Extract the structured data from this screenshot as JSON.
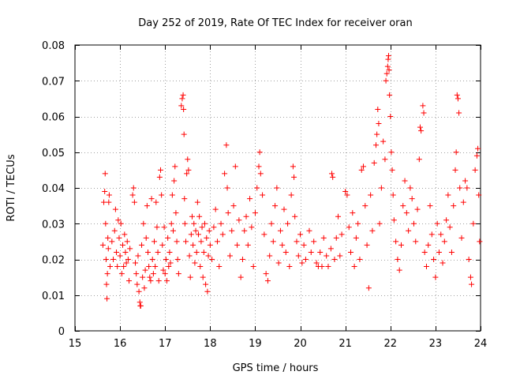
{
  "chart_data": {
    "type": "scatter",
    "title": "Day 252 of 2019, Rate Of TEC Index for receiver oran",
    "xlabel": "GPS time / hours",
    "ylabel": "ROTI / TECUs",
    "xlim": [
      15,
      24
    ],
    "ylim": [
      0,
      0.08
    ],
    "xticks": [
      15,
      16,
      17,
      18,
      19,
      20,
      21,
      22,
      23,
      24
    ],
    "xtick_labels": [
      "15",
      "16",
      "17",
      "18",
      "19",
      "20",
      "21",
      "22",
      "23",
      "24"
    ],
    "yticks": [
      0,
      0.01,
      0.02,
      0.03,
      0.04,
      0.05,
      0.06,
      0.07,
      0.08
    ],
    "ytick_labels": [
      "0",
      "0.01",
      "0.02",
      "0.03",
      "0.04",
      "0.05",
      "0.06",
      "0.07",
      "0.08"
    ],
    "grid": true,
    "marker": "+",
    "color": "#ff0000",
    "series": [
      {
        "name": "ROTI",
        "points": [
          [
            15.62,
            0.024
          ],
          [
            15.64,
            0.036
          ],
          [
            15.66,
            0.039
          ],
          [
            15.67,
            0.044
          ],
          [
            15.68,
            0.03
          ],
          [
            15.69,
            0.02
          ],
          [
            15.7,
            0.013
          ],
          [
            15.71,
            0.009
          ],
          [
            15.72,
            0.016
          ],
          [
            15.73,
            0.026
          ],
          [
            15.74,
            0.023
          ],
          [
            15.75,
            0.036
          ],
          [
            15.76,
            0.038
          ],
          [
            15.78,
            0.018
          ],
          [
            15.82,
            0.025
          ],
          [
            15.85,
            0.02
          ],
          [
            15.88,
            0.028
          ],
          [
            15.9,
            0.034
          ],
          [
            15.92,
            0.022
          ],
          [
            15.94,
            0.018
          ],
          [
            15.96,
            0.031
          ],
          [
            15.98,
            0.026
          ],
          [
            16.0,
            0.021
          ],
          [
            16.02,
            0.03
          ],
          [
            16.04,
            0.016
          ],
          [
            16.06,
            0.024
          ],
          [
            16.08,
            0.018
          ],
          [
            16.1,
            0.027
          ],
          [
            16.12,
            0.022
          ],
          [
            16.14,
            0.019
          ],
          [
            16.16,
            0.025
          ],
          [
            16.18,
            0.02
          ],
          [
            16.2,
            0.014
          ],
          [
            16.22,
            0.023
          ],
          [
            16.28,
            0.038
          ],
          [
            16.3,
            0.04
          ],
          [
            16.32,
            0.036
          ],
          [
            16.34,
            0.019
          ],
          [
            16.36,
            0.016
          ],
          [
            16.38,
            0.013
          ],
          [
            16.4,
            0.021
          ],
          [
            16.42,
            0.011
          ],
          [
            16.44,
            0.008
          ],
          [
            16.45,
            0.007
          ],
          [
            16.46,
            0.007
          ],
          [
            16.48,
            0.024
          ],
          [
            16.5,
            0.015
          ],
          [
            16.52,
            0.03
          ],
          [
            16.54,
            0.012
          ],
          [
            16.56,
            0.017
          ],
          [
            16.58,
            0.026
          ],
          [
            16.6,
            0.035
          ],
          [
            16.62,
            0.022
          ],
          [
            16.64,
            0.018
          ],
          [
            16.66,
            0.015
          ],
          [
            16.68,
            0.014
          ],
          [
            16.7,
            0.037
          ],
          [
            16.72,
            0.02
          ],
          [
            16.74,
            0.016
          ],
          [
            16.76,
            0.025
          ],
          [
            16.78,
            0.018
          ],
          [
            16.8,
            0.036
          ],
          [
            16.82,
            0.029
          ],
          [
            16.84,
            0.022
          ],
          [
            16.86,
            0.014
          ],
          [
            16.88,
            0.043
          ],
          [
            16.9,
            0.045
          ],
          [
            16.92,
            0.038
          ],
          [
            16.94,
            0.024
          ],
          [
            16.96,
            0.017
          ],
          [
            16.98,
            0.029
          ],
          [
            17.0,
            0.016
          ],
          [
            17.02,
            0.02
          ],
          [
            17.04,
            0.014
          ],
          [
            17.06,
            0.026
          ],
          [
            17.08,
            0.018
          ],
          [
            17.1,
            0.022
          ],
          [
            17.12,
            0.019
          ],
          [
            17.14,
            0.03
          ],
          [
            17.16,
            0.038
          ],
          [
            17.18,
            0.028
          ],
          [
            17.2,
            0.042
          ],
          [
            17.22,
            0.046
          ],
          [
            17.24,
            0.033
          ],
          [
            17.26,
            0.025
          ],
          [
            17.28,
            0.02
          ],
          [
            17.3,
            0.016
          ],
          [
            17.36,
            0.063
          ],
          [
            17.38,
            0.065
          ],
          [
            17.4,
            0.066
          ],
          [
            17.41,
            0.062
          ],
          [
            17.42,
            0.055
          ],
          [
            17.43,
            0.037
          ],
          [
            17.44,
            0.03
          ],
          [
            17.46,
            0.025
          ],
          [
            17.48,
            0.044
          ],
          [
            17.5,
            0.048
          ],
          [
            17.52,
            0.045
          ],
          [
            17.54,
            0.021
          ],
          [
            17.56,
            0.015
          ],
          [
            17.58,
            0.027
          ],
          [
            17.6,
            0.032
          ],
          [
            17.62,
            0.024
          ],
          [
            17.64,
            0.03
          ],
          [
            17.66,
            0.019
          ],
          [
            17.68,
            0.028
          ],
          [
            17.7,
            0.022
          ],
          [
            17.72,
            0.036
          ],
          [
            17.74,
            0.027
          ],
          [
            17.76,
            0.032
          ],
          [
            17.78,
            0.018
          ],
          [
            17.8,
            0.025
          ],
          [
            17.82,
            0.029
          ],
          [
            17.84,
            0.015
          ],
          [
            17.86,
            0.022
          ],
          [
            17.88,
            0.03
          ],
          [
            17.9,
            0.013
          ],
          [
            17.92,
            0.026
          ],
          [
            17.94,
            0.011
          ],
          [
            17.96,
            0.021
          ],
          [
            17.98,
            0.028
          ],
          [
            18.0,
            0.024
          ],
          [
            18.04,
            0.02
          ],
          [
            18.08,
            0.029
          ],
          [
            18.12,
            0.034
          ],
          [
            18.16,
            0.025
          ],
          [
            18.2,
            0.018
          ],
          [
            18.24,
            0.03
          ],
          [
            18.28,
            0.027
          ],
          [
            18.32,
            0.044
          ],
          [
            18.36,
            0.052
          ],
          [
            18.38,
            0.04
          ],
          [
            18.4,
            0.033
          ],
          [
            18.44,
            0.021
          ],
          [
            18.48,
            0.028
          ],
          [
            18.52,
            0.035
          ],
          [
            18.56,
            0.046
          ],
          [
            18.6,
            0.024
          ],
          [
            18.64,
            0.031
          ],
          [
            18.68,
            0.015
          ],
          [
            18.72,
            0.02
          ],
          [
            18.76,
            0.028
          ],
          [
            18.8,
            0.032
          ],
          [
            18.84,
            0.024
          ],
          [
            18.88,
            0.037
          ],
          [
            18.92,
            0.029
          ],
          [
            18.96,
            0.018
          ],
          [
            19.0,
            0.033
          ],
          [
            19.04,
            0.04
          ],
          [
            19.08,
            0.046
          ],
          [
            19.1,
            0.05
          ],
          [
            19.12,
            0.044
          ],
          [
            19.16,
            0.038
          ],
          [
            19.2,
            0.027
          ],
          [
            19.24,
            0.016
          ],
          [
            19.28,
            0.014
          ],
          [
            19.32,
            0.021
          ],
          [
            19.36,
            0.03
          ],
          [
            19.4,
            0.025
          ],
          [
            19.44,
            0.035
          ],
          [
            19.48,
            0.04
          ],
          [
            19.52,
            0.019
          ],
          [
            19.56,
            0.028
          ],
          [
            19.6,
            0.024
          ],
          [
            19.64,
            0.034
          ],
          [
            19.68,
            0.022
          ],
          [
            19.72,
            0.03
          ],
          [
            19.76,
            0.018
          ],
          [
            19.8,
            0.038
          ],
          [
            19.84,
            0.046
          ],
          [
            19.86,
            0.043
          ],
          [
            19.88,
            0.032
          ],
          [
            19.92,
            0.025
          ],
          [
            19.96,
            0.021
          ],
          [
            20.0,
            0.027
          ],
          [
            20.04,
            0.019
          ],
          [
            20.08,
            0.024
          ],
          [
            20.12,
            0.02
          ],
          [
            20.2,
            0.028
          ],
          [
            20.24,
            0.022
          ],
          [
            20.3,
            0.025
          ],
          [
            20.36,
            0.019
          ],
          [
            20.4,
            0.018
          ],
          [
            20.44,
            0.022
          ],
          [
            20.48,
            0.018
          ],
          [
            20.52,
            0.026
          ],
          [
            20.58,
            0.021
          ],
          [
            20.62,
            0.018
          ],
          [
            20.68,
            0.023
          ],
          [
            20.7,
            0.044
          ],
          [
            20.72,
            0.043
          ],
          [
            20.76,
            0.02
          ],
          [
            20.8,
            0.026
          ],
          [
            20.84,
            0.032
          ],
          [
            20.88,
            0.021
          ],
          [
            20.92,
            0.027
          ],
          [
            21.0,
            0.039
          ],
          [
            21.04,
            0.038
          ],
          [
            21.08,
            0.029
          ],
          [
            21.12,
            0.022
          ],
          [
            21.16,
            0.033
          ],
          [
            21.2,
            0.018
          ],
          [
            21.24,
            0.026
          ],
          [
            21.28,
            0.03
          ],
          [
            21.32,
            0.02
          ],
          [
            21.36,
            0.045
          ],
          [
            21.4,
            0.046
          ],
          [
            21.44,
            0.035
          ],
          [
            21.48,
            0.024
          ],
          [
            21.52,
            0.012
          ],
          [
            21.56,
            0.038
          ],
          [
            21.6,
            0.028
          ],
          [
            21.64,
            0.047
          ],
          [
            21.68,
            0.052
          ],
          [
            21.7,
            0.055
          ],
          [
            21.72,
            0.062
          ],
          [
            21.74,
            0.058
          ],
          [
            21.76,
            0.03
          ],
          [
            21.8,
            0.04
          ],
          [
            21.84,
            0.053
          ],
          [
            21.88,
            0.048
          ],
          [
            21.9,
            0.07
          ],
          [
            21.92,
            0.072
          ],
          [
            21.94,
            0.074
          ],
          [
            21.95,
            0.076
          ],
          [
            21.96,
            0.077
          ],
          [
            21.97,
            0.073
          ],
          [
            21.98,
            0.066
          ],
          [
            22.0,
            0.06
          ],
          [
            22.02,
            0.05
          ],
          [
            22.04,
            0.045
          ],
          [
            22.06,
            0.038
          ],
          [
            22.08,
            0.031
          ],
          [
            22.12,
            0.025
          ],
          [
            22.16,
            0.02
          ],
          [
            22.2,
            0.017
          ],
          [
            22.24,
            0.024
          ],
          [
            22.28,
            0.035
          ],
          [
            22.32,
            0.042
          ],
          [
            22.36,
            0.033
          ],
          [
            22.4,
            0.028
          ],
          [
            22.44,
            0.04
          ],
          [
            22.48,
            0.037
          ],
          [
            22.52,
            0.03
          ],
          [
            22.56,
            0.025
          ],
          [
            22.6,
            0.034
          ],
          [
            22.64,
            0.048
          ],
          [
            22.66,
            0.057
          ],
          [
            22.68,
            0.056
          ],
          [
            22.72,
            0.063
          ],
          [
            22.74,
            0.061
          ],
          [
            22.76,
            0.022
          ],
          [
            22.8,
            0.018
          ],
          [
            22.84,
            0.024
          ],
          [
            22.88,
            0.035
          ],
          [
            22.92,
            0.027
          ],
          [
            22.96,
            0.02
          ],
          [
            23.0,
            0.015
          ],
          [
            23.04,
            0.03
          ],
          [
            23.08,
            0.022
          ],
          [
            23.12,
            0.027
          ],
          [
            23.16,
            0.019
          ],
          [
            23.2,
            0.025
          ],
          [
            23.24,
            0.031
          ],
          [
            23.28,
            0.038
          ],
          [
            23.32,
            0.029
          ],
          [
            23.36,
            0.022
          ],
          [
            23.4,
            0.035
          ],
          [
            23.44,
            0.045
          ],
          [
            23.46,
            0.05
          ],
          [
            23.48,
            0.066
          ],
          [
            23.5,
            0.065
          ],
          [
            23.52,
            0.061
          ],
          [
            23.54,
            0.04
          ],
          [
            23.58,
            0.026
          ],
          [
            23.62,
            0.036
          ],
          [
            23.66,
            0.042
          ],
          [
            23.7,
            0.04
          ],
          [
            23.74,
            0.02
          ],
          [
            23.78,
            0.015
          ],
          [
            23.8,
            0.013
          ],
          [
            23.84,
            0.03
          ],
          [
            23.88,
            0.045
          ],
          [
            23.92,
            0.049
          ],
          [
            23.94,
            0.051
          ],
          [
            23.96,
            0.038
          ],
          [
            23.98,
            0.025
          ]
        ]
      }
    ]
  }
}
